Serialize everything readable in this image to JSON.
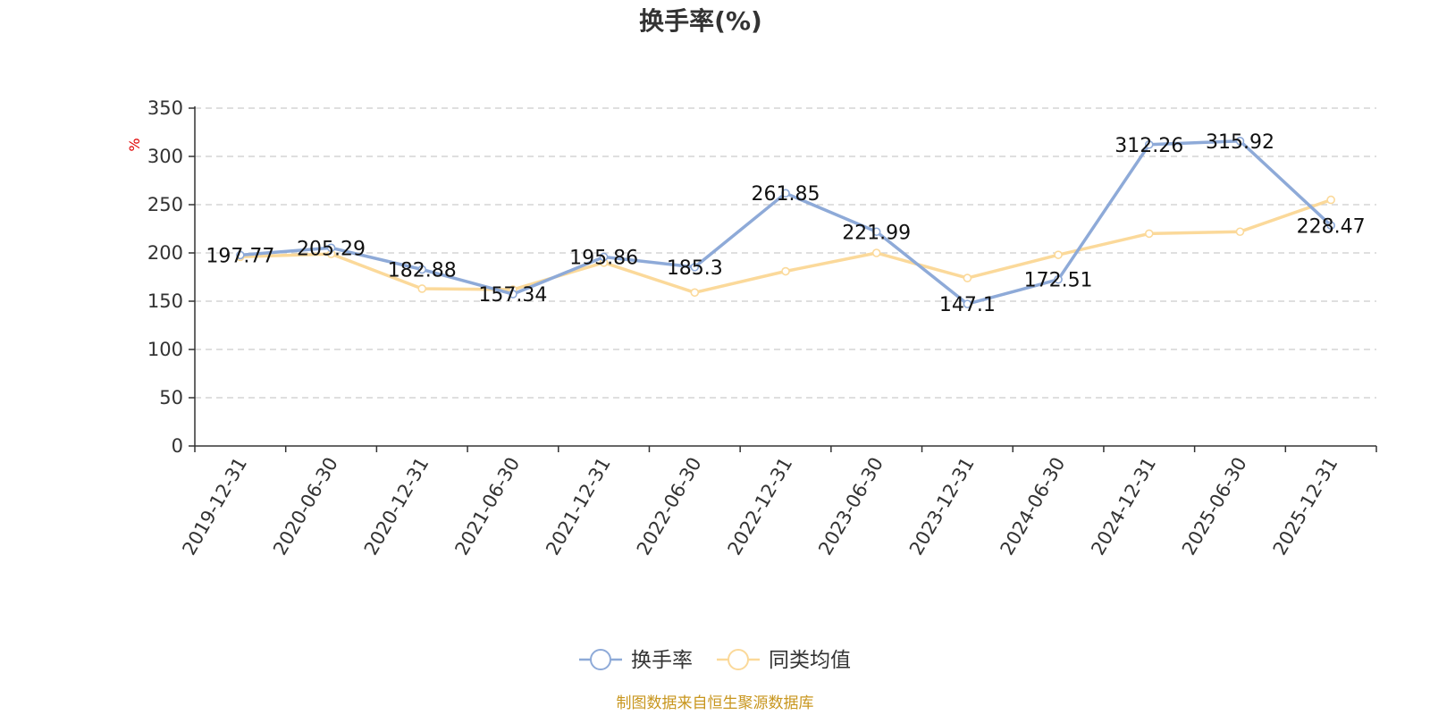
{
  "chart_data": {
    "type": "line",
    "title": "换手率(%)",
    "ylabel": "%",
    "ylim": [
      0,
      350
    ],
    "yticks": [
      0,
      50,
      100,
      150,
      200,
      250,
      300,
      350
    ],
    "grid": true,
    "legend_position": "bottom-center",
    "categories": [
      "2019-12-31",
      "2020-06-30",
      "2020-12-31",
      "2021-06-30",
      "2021-12-31",
      "2022-06-30",
      "2022-12-31",
      "2023-06-30",
      "2023-12-31",
      "2024-06-30",
      "2024-12-31",
      "2025-06-30",
      "2025-12-31"
    ],
    "series": [
      {
        "name": "换手率",
        "color": "#8eaad8",
        "values": [
          197.77,
          205.29,
          182.88,
          157.34,
          195.86,
          185.3,
          261.85,
          221.99,
          147.1,
          172.51,
          312.26,
          315.92,
          228.47
        ],
        "labels": [
          "197.77",
          "205.29",
          "182.88",
          "157.34",
          "195.86",
          "185.3",
          "261.85",
          "221.99",
          "147.1",
          "172.51",
          "312.26",
          "315.92",
          "228.47"
        ]
      },
      {
        "name": "同类均值",
        "color": "#fbd99a",
        "values": [
          196,
          199,
          163,
          162,
          190,
          159,
          181,
          200,
          174,
          198,
          220,
          222,
          255
        ]
      }
    ]
  },
  "footer": {
    "source": "制图数据来自恒生聚源数据库"
  }
}
